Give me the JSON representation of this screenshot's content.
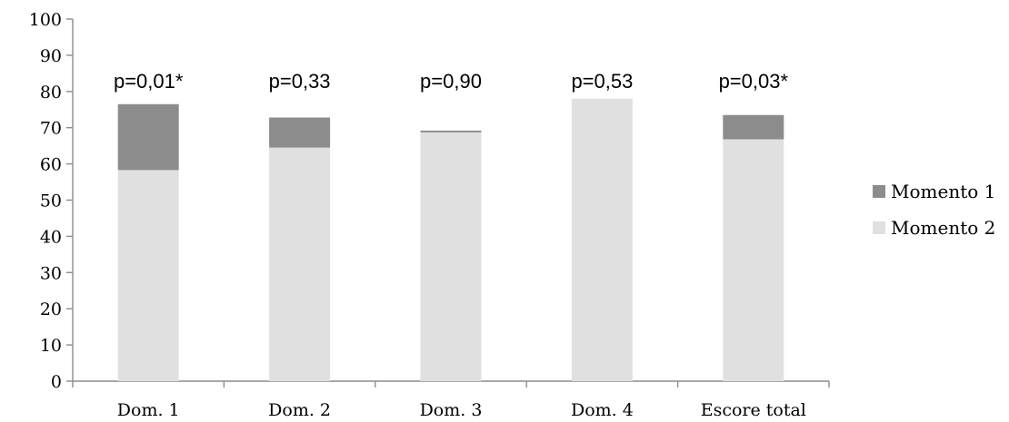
{
  "chart_data": {
    "type": "bar",
    "stacked": true,
    "categories": [
      "Dom. 1",
      "Dom. 2",
      "Dom. 3",
      "Dom. 4",
      "Escore total"
    ],
    "series": [
      {
        "name": "Momento 2",
        "values": [
          58.3,
          64.5,
          68.7,
          78.0,
          66.8
        ],
        "color": "#e0e0e0"
      },
      {
        "name": "Momento 1",
        "values": [
          18.2,
          8.3,
          0.5,
          0.0,
          6.7
        ],
        "color": "#8c8c8c"
      }
    ],
    "annotations": [
      "p=0,01*",
      "p=0,33",
      "p=0,90",
      "p=0,53",
      "p=0,03*"
    ],
    "yticks": [
      "0",
      "10",
      "20",
      "30",
      "40",
      "50",
      "60",
      "70",
      "80",
      "90",
      "100"
    ],
    "ylim": [
      0,
      100
    ],
    "legend": {
      "placement": "right",
      "items": [
        {
          "label": "Momento 1",
          "color": "#8c8c8c"
        },
        {
          "label": "Momento 2",
          "color": "#e0e0e0"
        }
      ]
    },
    "grid": false
  }
}
